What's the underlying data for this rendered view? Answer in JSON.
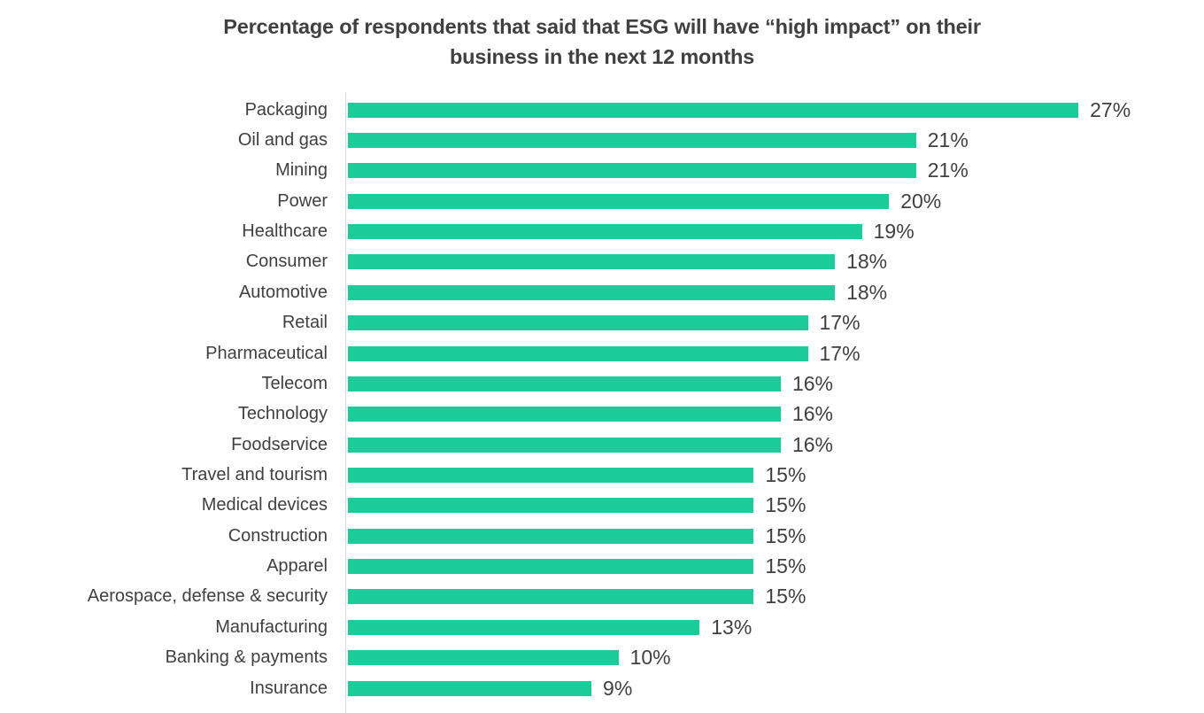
{
  "chart_data": {
    "type": "bar",
    "orientation": "horizontal",
    "title": "Percentage of respondents that said that ESG will have “high impact” on their business in the next 12 months",
    "categories": [
      "Packaging",
      "Oil and gas",
      "Mining",
      "Power",
      "Healthcare",
      "Consumer",
      "Automotive",
      "Retail",
      "Pharmaceutical",
      "Telecom",
      "Technology",
      "Foodservice",
      "Travel and tourism",
      "Medical devices",
      "Construction",
      "Apparel",
      "Aerospace, defense & security",
      "Manufacturing",
      "Banking & payments",
      "Insurance"
    ],
    "values": [
      27,
      21,
      21,
      20,
      19,
      18,
      18,
      17,
      17,
      16,
      16,
      16,
      15,
      15,
      15,
      15,
      15,
      13,
      10,
      9
    ],
    "value_labels": [
      "27%",
      "21%",
      "21%",
      "20%",
      "19%",
      "18%",
      "18%",
      "17%",
      "17%",
      "16%",
      "16%",
      "16%",
      "15%",
      "15%",
      "15%",
      "15%",
      "15%",
      "13%",
      "10%",
      "9%"
    ],
    "xlabel": "",
    "ylabel": "",
    "xlim": [
      0,
      31.5
    ],
    "grid": false,
    "legend": false,
    "bar_color": "#19CD9B",
    "axis_color": "#D9D9D9",
    "text_color": "#404040"
  }
}
